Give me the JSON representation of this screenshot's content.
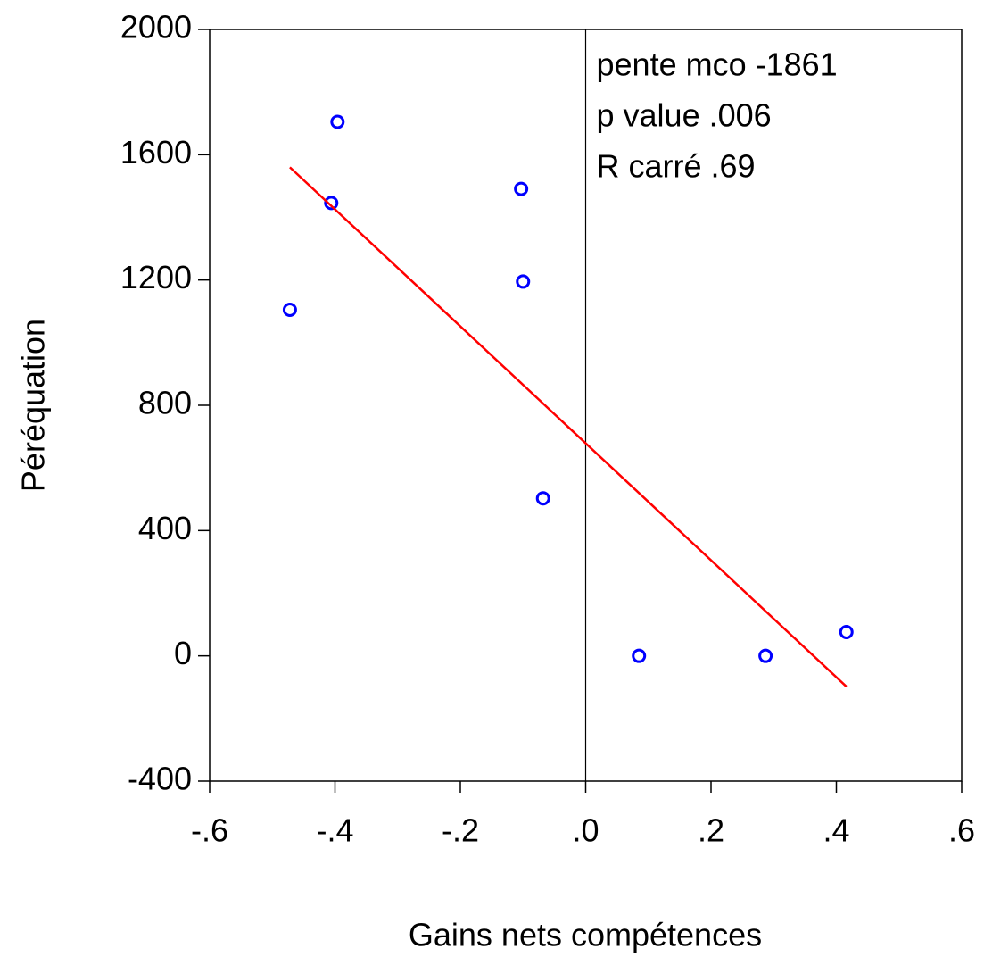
{
  "chart_data": {
    "type": "scatter",
    "xlabel": "Gains nets compétences",
    "ylabel": "Péréquation",
    "annotations": [
      "pente mco -1861",
      "p value  .006",
      "R carré .69"
    ],
    "xline": 0,
    "series": [
      {
        "type": "scatter",
        "color": "#0000ff",
        "x": [
          -0.472,
          -0.396,
          -0.406,
          -0.103,
          -0.1,
          -0.068,
          0.085,
          0.287,
          0.416
        ],
        "values": [
          1105,
          1705,
          1446,
          1491,
          1195,
          503,
          0,
          0,
          76
        ]
      },
      {
        "type": "line",
        "color": "#ff0000",
        "x": [
          -0.472,
          0.416
        ],
        "values": [
          1560,
          -98
        ]
      }
    ],
    "xlim": [
      -0.6,
      0.6
    ],
    "xticks": [
      {
        "value": -0.6,
        "label": "-.6"
      },
      {
        "value": -0.4,
        "label": "-.4"
      },
      {
        "value": -0.2,
        "label": "-.2"
      },
      {
        "value": 0,
        "label": ".0"
      },
      {
        "value": 0.2,
        "label": ".2"
      },
      {
        "value": 0.4,
        "label": ".4"
      },
      {
        "value": 0.6,
        "label": ".6"
      }
    ],
    "ylim": [
      -400,
      2000
    ],
    "yticks": [
      -400,
      0,
      400,
      800,
      1200,
      1600,
      2000
    ]
  }
}
